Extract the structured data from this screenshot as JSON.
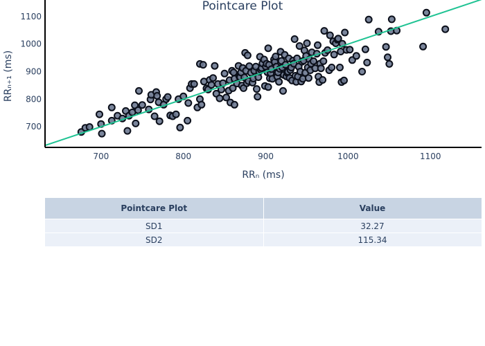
{
  "chart_data": {
    "type": "scatter",
    "title": "Pointcare Plot",
    "xlabel": "RRₙ (ms)",
    "ylabel": "RRₙ₊₁ (ms)",
    "xlim": [
      632,
      1162
    ],
    "ylim": [
      625,
      1160
    ],
    "xticks": [
      700,
      800,
      900,
      1000,
      1100
    ],
    "yticks": [
      700,
      800,
      900,
      1000,
      1100
    ],
    "grid": false,
    "marker_color": "#6b7890",
    "marker_edge_color": "#0b0f1a",
    "identity_line": {
      "x": [
        632,
        1162
      ],
      "y": [
        632,
        1162
      ],
      "color": "#1fc393"
    },
    "series": [
      {
        "points": [
          [
            676,
            681
          ],
          [
            681,
            696
          ],
          [
            686,
            699
          ],
          [
            698,
            745
          ],
          [
            700,
            710
          ],
          [
            701,
            675
          ],
          [
            713,
            722
          ],
          [
            713,
            770
          ],
          [
            720,
            740
          ],
          [
            726,
            730
          ],
          [
            730,
            757
          ],
          [
            732,
            685
          ],
          [
            734,
            740
          ],
          [
            738,
            752
          ],
          [
            741,
            778
          ],
          [
            742,
            712
          ],
          [
            745,
            760
          ],
          [
            746,
            830
          ],
          [
            750,
            779
          ],
          [
            758,
            763
          ],
          [
            760,
            799
          ],
          [
            761,
            816
          ],
          [
            765,
            738
          ],
          [
            767,
            826
          ],
          [
            768,
            812
          ],
          [
            770,
            789
          ],
          [
            771,
            720
          ],
          [
            776,
            780
          ],
          [
            779,
            800
          ],
          [
            781,
            808
          ],
          [
            784,
            741
          ],
          [
            787,
            738
          ],
          [
            791,
            745
          ],
          [
            794,
            800
          ],
          [
            796,
            697
          ],
          [
            800,
            810
          ],
          [
            805,
            722
          ],
          [
            806,
            786
          ],
          [
            808,
            840
          ],
          [
            810,
            855
          ],
          [
            813,
            855
          ],
          [
            817,
            770
          ],
          [
            820,
            800
          ],
          [
            820,
            928
          ],
          [
            822,
            780
          ],
          [
            824,
            925
          ],
          [
            825,
            864
          ],
          [
            828,
            839
          ],
          [
            830,
            835
          ],
          [
            832,
            870
          ],
          [
            834,
            852
          ],
          [
            836,
            877
          ],
          [
            838,
            921
          ],
          [
            840,
            820
          ],
          [
            842,
            855
          ],
          [
            844,
            803
          ],
          [
            846,
            835
          ],
          [
            848,
            858
          ],
          [
            850,
            893
          ],
          [
            852,
            806
          ],
          [
            855,
            831
          ],
          [
            856,
            869
          ],
          [
            857,
            788
          ],
          [
            859,
            903
          ],
          [
            860,
            840
          ],
          [
            861,
            897
          ],
          [
            862,
            874
          ],
          [
            862,
            780
          ],
          [
            865,
            857
          ],
          [
            867,
            921
          ],
          [
            868,
            882
          ],
          [
            869,
            880
          ],
          [
            870,
            897
          ],
          [
            871,
            849
          ],
          [
            872,
            913
          ],
          [
            873,
            840
          ],
          [
            874,
            879
          ],
          [
            875,
            968
          ],
          [
            876,
            903
          ],
          [
            877,
            858
          ],
          [
            878,
            959
          ],
          [
            879,
            866
          ],
          [
            880,
            920
          ],
          [
            882,
            896
          ],
          [
            884,
            860
          ],
          [
            885,
            875
          ],
          [
            886,
            903
          ],
          [
            888,
            918
          ],
          [
            889,
            837
          ],
          [
            890,
            809
          ],
          [
            891,
            880
          ],
          [
            892,
            900
          ],
          [
            893,
            954
          ],
          [
            894,
            907
          ],
          [
            895,
            913
          ],
          [
            896,
            930
          ],
          [
            898,
            944
          ],
          [
            899,
            848
          ],
          [
            900,
            918
          ],
          [
            901,
            929
          ],
          [
            902,
            898
          ],
          [
            903,
            985
          ],
          [
            903,
            844
          ],
          [
            904,
            925
          ],
          [
            905,
            876
          ],
          [
            906,
            894
          ],
          [
            907,
            909
          ],
          [
            908,
            874
          ],
          [
            910,
            944
          ],
          [
            911,
            935
          ],
          [
            912,
            955
          ],
          [
            913,
            918
          ],
          [
            914,
            882
          ],
          [
            915,
            897
          ],
          [
            916,
            863
          ],
          [
            917,
            910
          ],
          [
            918,
            972
          ],
          [
            919,
            939
          ],
          [
            920,
            915
          ],
          [
            921,
            830
          ],
          [
            922,
            888
          ],
          [
            923,
            961
          ],
          [
            924,
            925
          ],
          [
            925,
            883
          ],
          [
            926,
            896
          ],
          [
            927,
            900
          ],
          [
            928,
            948
          ],
          [
            929,
            877
          ],
          [
            930,
            906
          ],
          [
            931,
            915
          ],
          [
            932,
            868
          ],
          [
            933,
            940
          ],
          [
            934,
            929
          ],
          [
            935,
            1018
          ],
          [
            936,
            885
          ],
          [
            937,
            863
          ],
          [
            938,
            948
          ],
          [
            939,
            882
          ],
          [
            940,
            918
          ],
          [
            941,
            993
          ],
          [
            942,
            900
          ],
          [
            943,
            864
          ],
          [
            944,
            936
          ],
          [
            945,
            874
          ],
          [
            946,
            940
          ],
          [
            947,
            977
          ],
          [
            948,
            896
          ],
          [
            949,
            957
          ],
          [
            950,
            1003
          ],
          [
            951,
            915
          ],
          [
            952,
            877
          ],
          [
            953,
            944
          ],
          [
            954,
            905
          ],
          [
            955,
            929
          ],
          [
            956,
            970
          ],
          [
            958,
            938
          ],
          [
            960,
            912
          ],
          [
            962,
            965
          ],
          [
            963,
            996
          ],
          [
            964,
            882
          ],
          [
            965,
            862
          ],
          [
            966,
            929
          ],
          [
            967,
            912
          ],
          [
            969,
            870
          ],
          [
            970,
            938
          ],
          [
            971,
            1048
          ],
          [
            972,
            968
          ],
          [
            975,
            978
          ],
          [
            977,
            905
          ],
          [
            978,
            1032
          ],
          [
            980,
            915
          ],
          [
            982,
            1010
          ],
          [
            983,
            962
          ],
          [
            985,
            1003
          ],
          [
            987,
            1016
          ],
          [
            988,
            1020
          ],
          [
            990,
            915
          ],
          [
            991,
            973
          ],
          [
            992,
            862
          ],
          [
            993,
            1001
          ],
          [
            995,
            868
          ],
          [
            996,
            1042
          ],
          [
            998,
            979
          ],
          [
            1002,
            980
          ],
          [
            1005,
            942
          ],
          [
            1010,
            957
          ],
          [
            1017,
            900
          ],
          [
            1021,
            981
          ],
          [
            1023,
            933
          ],
          [
            1025,
            1089
          ],
          [
            1037,
            1045
          ],
          [
            1046,
            990
          ],
          [
            1048,
            952
          ],
          [
            1050,
            928
          ],
          [
            1052,
            1047
          ],
          [
            1053,
            1090
          ],
          [
            1059,
            1049
          ],
          [
            1091,
            991
          ],
          [
            1095,
            1114
          ],
          [
            1118,
            1054
          ]
        ]
      }
    ]
  },
  "table": {
    "headers": [
      "Pointcare Plot",
      "Value"
    ],
    "rows": [
      [
        "SD1",
        "32.27"
      ],
      [
        "SD2",
        "115.34"
      ]
    ]
  }
}
